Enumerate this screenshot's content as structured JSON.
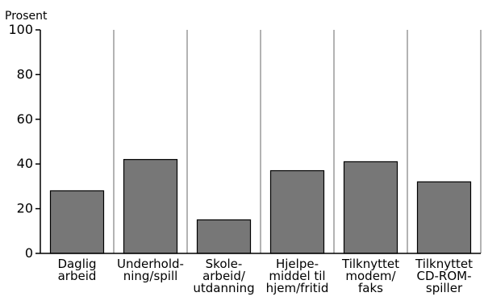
{
  "chart_data": {
    "type": "bar",
    "ylabel": "Prosent",
    "ylim": [
      0,
      100
    ],
    "yticks": [
      "0",
      "20",
      "40",
      "60",
      "80",
      "100"
    ],
    "grid": "vertical",
    "categories": [
      [
        "Daglig",
        "arbeid"
      ],
      [
        "Underhold-",
        "ning/spill"
      ],
      [
        "Skole-",
        "arbeid/",
        "utdanning"
      ],
      [
        "Hjelpe-",
        "middel til",
        "hjem/fritid"
      ],
      [
        "Tilknyttet",
        "modem/",
        "faks"
      ],
      [
        "Tilknyttet",
        "CD-ROM-",
        "spiller"
      ]
    ],
    "values": [
      28,
      42,
      15,
      37,
      41,
      32
    ],
    "colors": {
      "bar": "#777777",
      "grid": "#b3b3b3"
    }
  }
}
